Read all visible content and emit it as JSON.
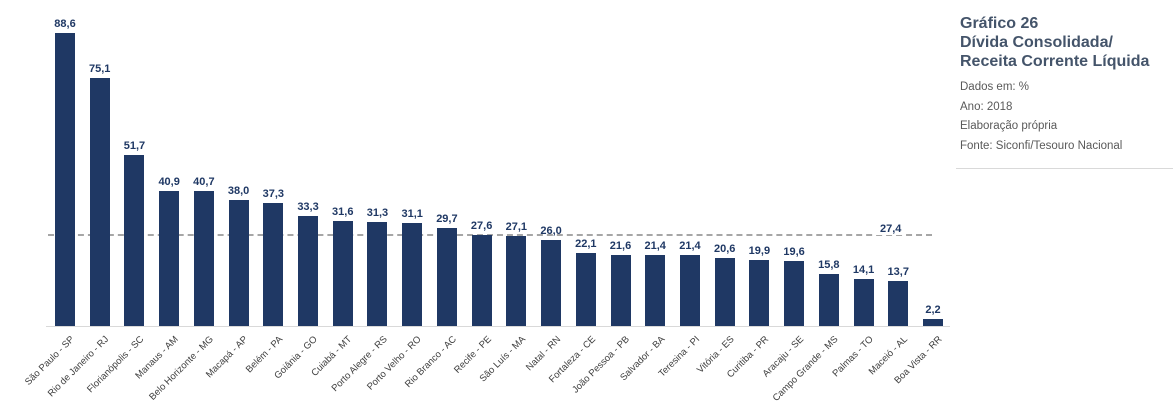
{
  "chart_data": {
    "type": "bar",
    "title": "Gráfico 26",
    "subtitle": "Dívida Consolidada/Receita Corrente Líquida",
    "unit": "%",
    "year": "2018",
    "categories": [
      "São Paulo - SP",
      "Rio de Janeiro - RJ",
      "Florianópolis - SC",
      "Manaus - AM",
      "Belo Horizonte - MG",
      "Macapá - AP",
      "Belém - PA",
      "Goiânia - GO",
      "Cuiabá - MT",
      "Porto Alegre - RS",
      "Porto Velho - RO",
      "Rio Branco - AC",
      "Recife - PE",
      "São Luís - MA",
      "Natal - RN",
      "Fortaleza - CE",
      "João Pessoa - PB",
      "Salvador - BA",
      "Teresina - PI",
      "Vitória - ES",
      "Curitiba - PR",
      "Aracaju - SE",
      "Campo Grande - MS",
      "Palmas - TO",
      "Maceió - AL",
      "Boa Vista - RR"
    ],
    "values": [
      88.6,
      75.1,
      51.7,
      40.9,
      40.7,
      38.0,
      37.3,
      33.3,
      31.6,
      31.3,
      31.1,
      29.7,
      27.6,
      27.1,
      26.0,
      22.1,
      21.6,
      21.4,
      21.4,
      20.6,
      19.9,
      19.6,
      15.8,
      14.1,
      13.7,
      2.2
    ],
    "value_labels": [
      "88,6",
      "75,1",
      "51,7",
      "40,9",
      "40,7",
      "38,0",
      "37,3",
      "33,3",
      "31,6",
      "31,3",
      "31,1",
      "29,7",
      "27,6",
      "27,1",
      "26,0",
      "22,1",
      "21,6",
      "21,4",
      "21,4",
      "20,6",
      "19,9",
      "19,6",
      "15,8",
      "14,1",
      "13,7",
      "2,2"
    ],
    "reference_line": {
      "value": 27.4,
      "label": "27,4"
    },
    "ylim": [
      0,
      95
    ],
    "grid": false,
    "legend": "none",
    "bar_color": "#1F3864",
    "value_label_color": "#1F3864",
    "reference_line_color": "#A6A6A6",
    "axis_line_color": "#D9D9D9",
    "category_label_color": "#404040"
  },
  "info_panel": {
    "title_lines": [
      "Gráfico 26",
      "Dívida Consolidada/",
      "Receita Corrente Líquida"
    ],
    "meta_lines": [
      "Dados em: %",
      "Ano: 2018",
      "Elaboração própria",
      "Fonte: Siconfi/Tesouro Nacional"
    ]
  }
}
